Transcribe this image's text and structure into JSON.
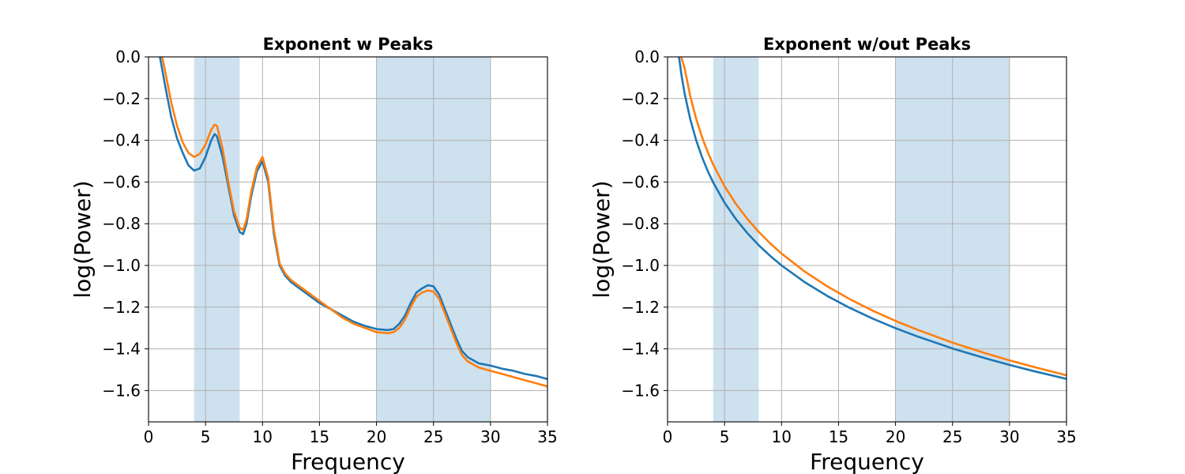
{
  "chart_data": [
    {
      "type": "line",
      "title": "Exponent w Peaks",
      "xlabel": "Frequency",
      "ylabel": "log(Power)",
      "xlim": [
        0,
        35
      ],
      "ylim": [
        -1.75,
        0.0
      ],
      "xticks": [
        "0",
        "5",
        "10",
        "15",
        "20",
        "25",
        "30",
        "35"
      ],
      "yticks": [
        "0.0",
        "−0.2",
        "−0.4",
        "−0.6",
        "−0.8",
        "−1.0",
        "−1.2",
        "−1.4",
        "−1.6"
      ],
      "grid": true,
      "shaded_bands": [
        [
          4,
          8
        ],
        [
          20,
          30
        ]
      ],
      "series": [
        {
          "color": "#1f77b4",
          "x": [
            1.0,
            1.5,
            2,
            2.5,
            3,
            3.5,
            4,
            4.5,
            5,
            5.5,
            5.8,
            6,
            6.5,
            7,
            7.5,
            8,
            8.3,
            8.6,
            9,
            9.5,
            10,
            10.5,
            11,
            11.5,
            12,
            12.5,
            13,
            14,
            15,
            16,
            17,
            18,
            19,
            20,
            21,
            21.5,
            22,
            22.5,
            23,
            23.5,
            24,
            24.5,
            25,
            25.5,
            26,
            26.5,
            27,
            27.5,
            28,
            29,
            30,
            31,
            32,
            33,
            34,
            35
          ],
          "y": [
            0.0,
            -0.15,
            -0.29,
            -0.39,
            -0.46,
            -0.52,
            -0.545,
            -0.535,
            -0.48,
            -0.4,
            -0.37,
            -0.38,
            -0.48,
            -0.62,
            -0.76,
            -0.84,
            -0.85,
            -0.8,
            -0.67,
            -0.55,
            -0.5,
            -0.6,
            -0.85,
            -1.0,
            -1.05,
            -1.08,
            -1.1,
            -1.14,
            -1.18,
            -1.21,
            -1.24,
            -1.27,
            -1.29,
            -1.305,
            -1.31,
            -1.305,
            -1.28,
            -1.24,
            -1.18,
            -1.13,
            -1.11,
            -1.095,
            -1.1,
            -1.14,
            -1.21,
            -1.28,
            -1.35,
            -1.41,
            -1.44,
            -1.47,
            -1.48,
            -1.495,
            -1.505,
            -1.52,
            -1.53,
            -1.545
          ]
        },
        {
          "color": "#ff7f0e",
          "x": [
            1.2,
            1.5,
            2,
            2.5,
            3,
            3.5,
            4,
            4.5,
            5,
            5.5,
            5.8,
            6,
            6.5,
            7,
            7.5,
            8,
            8.3,
            8.6,
            9,
            9.5,
            10,
            10.5,
            11,
            11.5,
            12,
            12.5,
            13,
            14,
            15,
            16,
            17,
            18,
            19,
            20,
            21,
            21.5,
            22,
            22.5,
            23,
            23.5,
            24,
            24.5,
            25,
            25.5,
            26,
            26.5,
            27,
            27.5,
            28,
            29,
            30,
            31,
            32,
            33,
            34,
            35
          ],
          "y": [
            0.0,
            -0.08,
            -0.22,
            -0.33,
            -0.41,
            -0.46,
            -0.48,
            -0.465,
            -0.42,
            -0.35,
            -0.325,
            -0.33,
            -0.44,
            -0.6,
            -0.74,
            -0.82,
            -0.83,
            -0.78,
            -0.65,
            -0.53,
            -0.48,
            -0.58,
            -0.83,
            -0.99,
            -1.04,
            -1.07,
            -1.09,
            -1.13,
            -1.17,
            -1.21,
            -1.25,
            -1.28,
            -1.3,
            -1.32,
            -1.325,
            -1.32,
            -1.3,
            -1.26,
            -1.2,
            -1.15,
            -1.13,
            -1.12,
            -1.125,
            -1.16,
            -1.23,
            -1.3,
            -1.37,
            -1.43,
            -1.46,
            -1.49,
            -1.505,
            -1.52,
            -1.535,
            -1.55,
            -1.565,
            -1.58
          ]
        }
      ]
    },
    {
      "type": "line",
      "title": "Exponent w/out Peaks",
      "xlabel": "Frequency",
      "ylabel": "log(Power)",
      "xlim": [
        0,
        35
      ],
      "ylim": [
        -1.75,
        0.0
      ],
      "xticks": [
        "0",
        "5",
        "10",
        "15",
        "20",
        "25",
        "30",
        "35"
      ],
      "yticks": [
        "0.0",
        "−0.2",
        "−0.4",
        "−0.6",
        "−0.8",
        "−1.0",
        "−1.2",
        "−1.4",
        "−1.6"
      ],
      "grid": true,
      "shaded_bands": [
        [
          4,
          8
        ],
        [
          20,
          30
        ]
      ],
      "series": [
        {
          "color": "#1f77b4",
          "x": [
            1.0,
            1.25,
            1.5,
            2,
            2.5,
            3,
            3.5,
            4,
            5,
            6,
            7,
            8,
            9,
            10,
            12,
            14,
            16,
            18,
            20,
            22,
            25,
            28,
            30,
            32,
            35
          ],
          "y": [
            0.0,
            -0.097,
            -0.176,
            -0.301,
            -0.398,
            -0.477,
            -0.544,
            -0.602,
            -0.699,
            -0.778,
            -0.845,
            -0.903,
            -0.954,
            -1.0,
            -1.079,
            -1.146,
            -1.204,
            -1.255,
            -1.301,
            -1.342,
            -1.398,
            -1.447,
            -1.477,
            -1.505,
            -1.544
          ]
        },
        {
          "color": "#ff7f0e",
          "x": [
            1.2,
            1.5,
            2,
            2.5,
            3,
            3.5,
            4,
            5,
            6,
            7,
            8,
            9,
            10,
            12,
            14,
            16,
            18,
            20,
            22,
            25,
            28,
            30,
            32,
            35
          ],
          "y": [
            0.0,
            -0.055,
            -0.19,
            -0.295,
            -0.381,
            -0.453,
            -0.516,
            -0.62,
            -0.705,
            -0.777,
            -0.839,
            -0.894,
            -0.943,
            -1.028,
            -1.1,
            -1.162,
            -1.217,
            -1.266,
            -1.31,
            -1.37,
            -1.423,
            -1.455,
            -1.485,
            -1.527
          ]
        }
      ]
    }
  ]
}
